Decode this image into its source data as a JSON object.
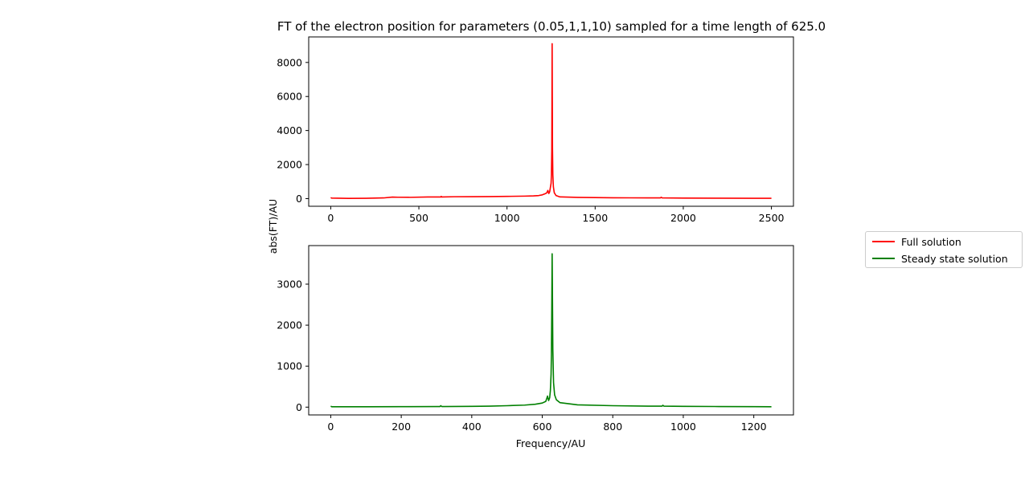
{
  "title": "FT of the electron position for parameters (0.05,1,1,10) sampled for a time length of 625.0",
  "ylabel": "abs(FT)/AU",
  "xlabel": "Frequency/AU",
  "legend": {
    "placement": "center-right (outside axes)",
    "items": [
      {
        "label": "Full solution",
        "color": "#ff0000"
      },
      {
        "label": "Steady state solution",
        "color": "#008000"
      }
    ]
  },
  "chart_data": [
    {
      "type": "line",
      "series": [
        {
          "name": "Full solution",
          "color": "#ff0000"
        }
      ],
      "xlim": [
        -125,
        2625
      ],
      "ylim": [
        -450,
        9500
      ],
      "xticks": [
        0,
        500,
        1000,
        1500,
        2000,
        2500
      ],
      "yticks": [
        0,
        2000,
        4000,
        6000,
        8000
      ],
      "grid": false,
      "points": [
        [
          0,
          60
        ],
        [
          5,
          30
        ],
        [
          100,
          15
        ],
        [
          200,
          20
        ],
        [
          300,
          40
        ],
        [
          350,
          90
        ],
        [
          380,
          80
        ],
        [
          450,
          75
        ],
        [
          550,
          95
        ],
        [
          625,
          95
        ],
        [
          627,
          130
        ],
        [
          630,
          95
        ],
        [
          700,
          110
        ],
        [
          800,
          115
        ],
        [
          900,
          120
        ],
        [
          1000,
          130
        ],
        [
          1100,
          145
        ],
        [
          1150,
          160
        ],
        [
          1180,
          180
        ],
        [
          1200,
          220
        ],
        [
          1215,
          280
        ],
        [
          1225,
          330
        ],
        [
          1232,
          480
        ],
        [
          1237,
          300
        ],
        [
          1242,
          400
        ],
        [
          1246,
          650
        ],
        [
          1250,
          900
        ],
        [
          1252,
          1400
        ],
        [
          1254,
          2800
        ],
        [
          1255,
          5500
        ],
        [
          1256,
          9100
        ],
        [
          1257,
          6000
        ],
        [
          1258,
          3000
        ],
        [
          1260,
          1400
        ],
        [
          1263,
          700
        ],
        [
          1268,
          350
        ],
        [
          1278,
          180
        ],
        [
          1300,
          100
        ],
        [
          1400,
          70
        ],
        [
          1500,
          60
        ],
        [
          1600,
          50
        ],
        [
          1700,
          45
        ],
        [
          1800,
          40
        ],
        [
          1870,
          40
        ],
        [
          1875,
          80
        ],
        [
          1880,
          40
        ],
        [
          2000,
          30
        ],
        [
          2200,
          25
        ],
        [
          2400,
          20
        ],
        [
          2500,
          20
        ]
      ]
    },
    {
      "type": "line",
      "series": [
        {
          "name": "Steady state solution",
          "color": "#008000"
        }
      ],
      "xlim": [
        -62.5,
        1312.5
      ],
      "ylim": [
        -190,
        3940
      ],
      "xticks": [
        0,
        200,
        400,
        600,
        800,
        1000,
        1200
      ],
      "yticks": [
        0,
        1000,
        2000,
        3000
      ],
      "grid": false,
      "points": [
        [
          0,
          25
        ],
        [
          3,
          10
        ],
        [
          100,
          10
        ],
        [
          200,
          12
        ],
        [
          300,
          15
        ],
        [
          310,
          15
        ],
        [
          312,
          35
        ],
        [
          315,
          15
        ],
        [
          400,
          20
        ],
        [
          450,
          25
        ],
        [
          500,
          35
        ],
        [
          550,
          50
        ],
        [
          580,
          70
        ],
        [
          600,
          100
        ],
        [
          610,
          140
        ],
        [
          615,
          270
        ],
        [
          618,
          160
        ],
        [
          621,
          230
        ],
        [
          623,
          400
        ],
        [
          625,
          800
        ],
        [
          626,
          1300
        ],
        [
          627,
          2400
        ],
        [
          628,
          3740
        ],
        [
          629,
          2600
        ],
        [
          630,
          1400
        ],
        [
          632,
          600
        ],
        [
          635,
          300
        ],
        [
          640,
          180
        ],
        [
          650,
          110
        ],
        [
          700,
          55
        ],
        [
          800,
          35
        ],
        [
          900,
          25
        ],
        [
          940,
          25
        ],
        [
          942,
          45
        ],
        [
          945,
          25
        ],
        [
          1000,
          20
        ],
        [
          1100,
          15
        ],
        [
          1200,
          12
        ],
        [
          1250,
          10
        ]
      ]
    }
  ]
}
